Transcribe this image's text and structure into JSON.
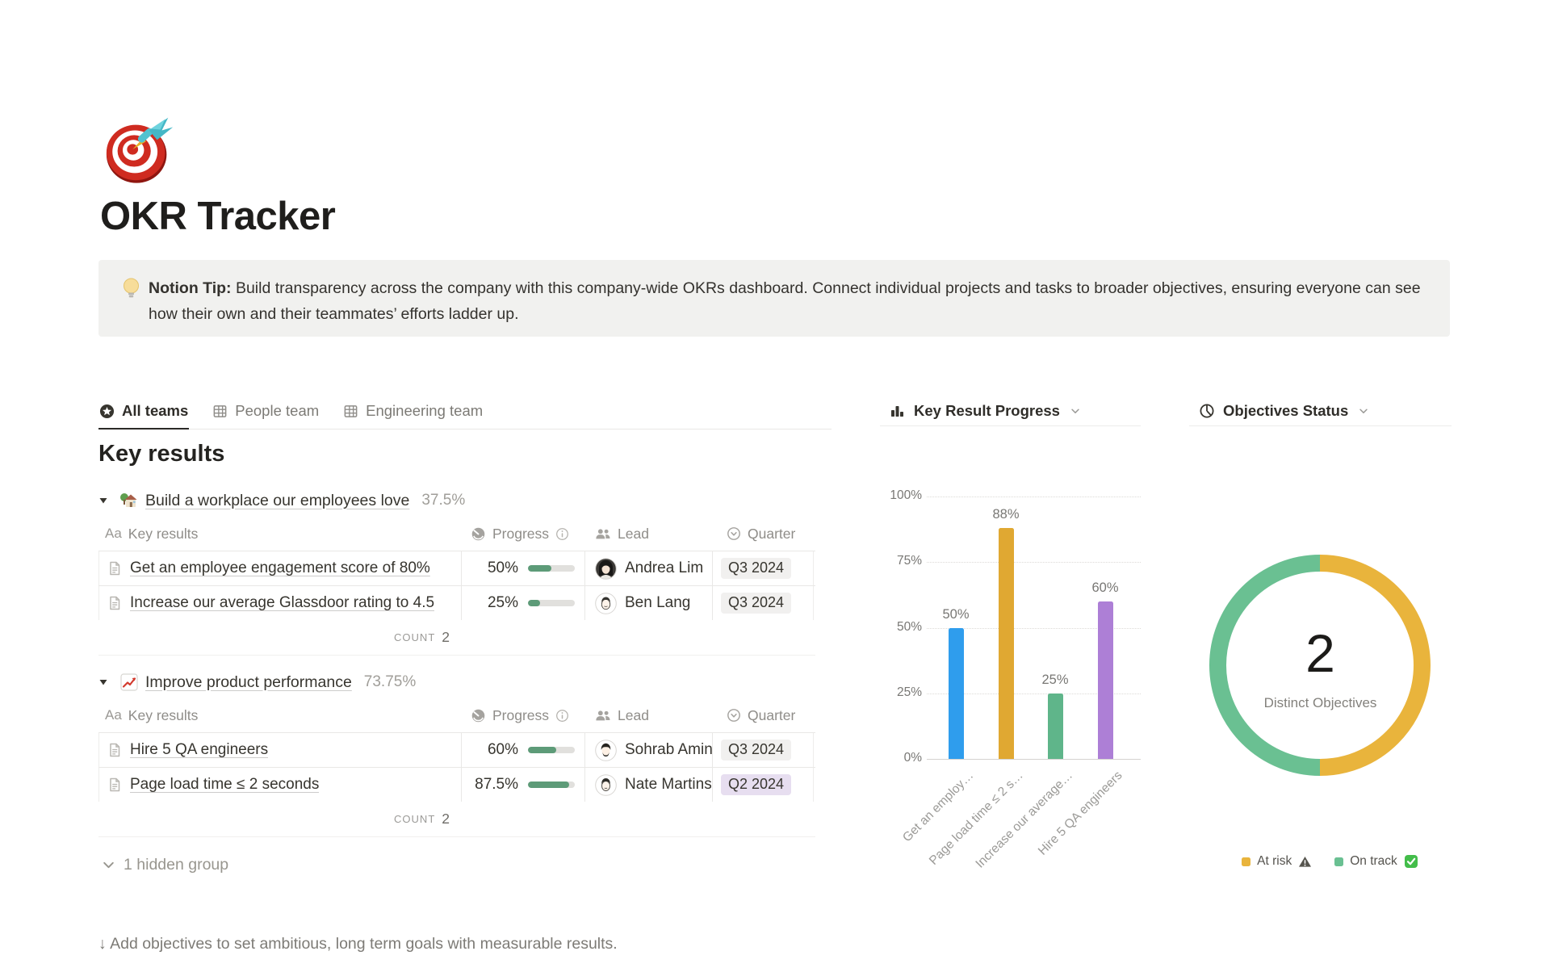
{
  "page": {
    "title": "OKR Tracker",
    "icon": "dart-target-emoji"
  },
  "tip": {
    "label": "Notion Tip:",
    "text": " Build transparency across the company with this company-wide OKRs dashboard. Connect individual projects and tasks to broader objectives, ensuring everyone can see how their own and their teammates’ efforts ladder up."
  },
  "tabs": [
    {
      "label": "All teams",
      "icon": "star-circle-icon",
      "active": true
    },
    {
      "label": "People team",
      "icon": "table-icon",
      "active": false
    },
    {
      "label": "Engineering team",
      "icon": "table-icon",
      "active": false
    }
  ],
  "section": {
    "heading": "Key results"
  },
  "table": {
    "columns": [
      {
        "prefix": "Aa",
        "label": "Key results"
      },
      {
        "icon": "gauge",
        "label": "Progress",
        "suffix_icon": "info"
      },
      {
        "icon": "people",
        "label": "Lead"
      },
      {
        "icon": "select",
        "label": "Quarter"
      }
    ],
    "quarter_colors": {
      "gray": "#f1f0ef",
      "purple": "#e7def0"
    },
    "progress_fill": "#5d9b78"
  },
  "groups": [
    {
      "emoji": "house-garden-emoji",
      "title": "Build a workplace our employees love",
      "percent": "37.5%",
      "rows": [
        {
          "title": "Get an employee engagement score of 80%",
          "progress_label": "50%",
          "progress_pct": 50,
          "lead": "Andrea Lim",
          "avatar": "andrea",
          "quarter": "Q3 2024",
          "quarter_variant": "gray"
        },
        {
          "title": "Increase our average Glassdoor rating to 4.5",
          "progress_label": "25%",
          "progress_pct": 25,
          "lead": "Ben Lang",
          "avatar": "ben",
          "quarter": "Q3 2024",
          "quarter_variant": "gray"
        }
      ],
      "count_label": "COUNT",
      "count": "2"
    },
    {
      "emoji": "chart-up-emoji",
      "title": "Improve product performance",
      "percent": "73.75%",
      "rows": [
        {
          "title": "Hire 5 QA engineers",
          "progress_label": "60%",
          "progress_pct": 60,
          "lead": "Sohrab Amin",
          "avatar": "sohrab",
          "quarter": "Q3 2024",
          "quarter_variant": "gray"
        },
        {
          "title": "Page load time ≤ 2 seconds",
          "progress_label": "87.5%",
          "progress_pct": 87.5,
          "lead": "Nate Martins",
          "avatar": "nate",
          "quarter": "Q2 2024",
          "quarter_variant": "purple"
        }
      ],
      "count_label": "COUNT",
      "count": "2"
    }
  ],
  "hidden_group": {
    "label": "1 hidden group"
  },
  "footer": {
    "text": "↓ Add objectives to set ambitious, long term goals with measurable results."
  },
  "chart_data": [
    {
      "type": "bar",
      "title": "Key Result Progress",
      "categories": [
        "Get an employ…",
        "Page load time ≤ 2 s…",
        "Increase our average…",
        "Hire 5 QA engineers"
      ],
      "values": [
        50,
        88,
        25,
        60
      ],
      "value_labels": [
        "50%",
        "88%",
        "25%",
        "60%"
      ],
      "colors": [
        "#2f9ded",
        "#e0a832",
        "#5fb58a",
        "#ad7fd6"
      ],
      "xlabel": "",
      "ylabel": "",
      "ylim": [
        0,
        100
      ],
      "yticks": [
        "0%",
        "25%",
        "50%",
        "75%",
        "100%"
      ],
      "grid": "horizontal-dotted",
      "legend_position": "none"
    },
    {
      "type": "pie",
      "title": "Objectives Status",
      "center_value": "2",
      "center_label": "Distinct Objectives",
      "slices": [
        {
          "label": "At risk",
          "value": 1,
          "color": "#e9b43c",
          "status_icon": "warning"
        },
        {
          "label": "On track",
          "value": 1,
          "color": "#6ac092",
          "status_icon": "check"
        }
      ],
      "legend_position": "bottom"
    }
  ]
}
